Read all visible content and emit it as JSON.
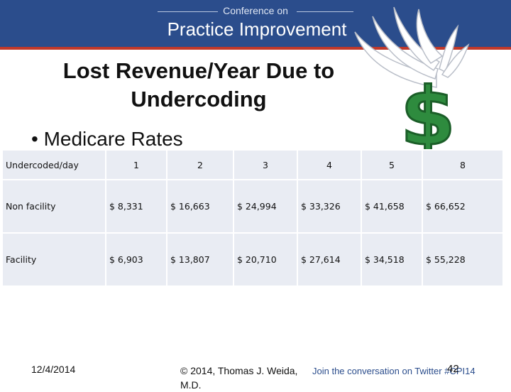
{
  "banner": {
    "small": "Conference on",
    "big": "Practice Improvement"
  },
  "slide": {
    "title_line1": "Lost Revenue/Year Due to",
    "title_line2": "Undercoding",
    "bullet": "• Medicare Rates"
  },
  "table": {
    "rows": [
      [
        "Undercoded/day",
        "1",
        "2",
        "3",
        "4",
        "5",
        "8"
      ],
      [
        "Non facility",
        "$ 8,331",
        "$ 16,663",
        "$ 24,994",
        "$ 33,326",
        "$ 41,658",
        "$ 66,652"
      ],
      [
        "Facility",
        "$ 6,903",
        "$  13,807",
        "$  20,710",
        "$ 27,614",
        "$  34,518",
        "$ 55,228"
      ]
    ]
  },
  "footer": {
    "date": "12/4/2014",
    "copyright": "© 2014, Thomas J. Weida, M.D.",
    "join": "Join the conversation on Twitter #CPI14",
    "page": "42"
  },
  "colors": {
    "banner": "#2b4d8c",
    "accent_line": "#c0392b",
    "dollar_green": "#2e8b3e",
    "table_cell": "#e9ecf3"
  }
}
